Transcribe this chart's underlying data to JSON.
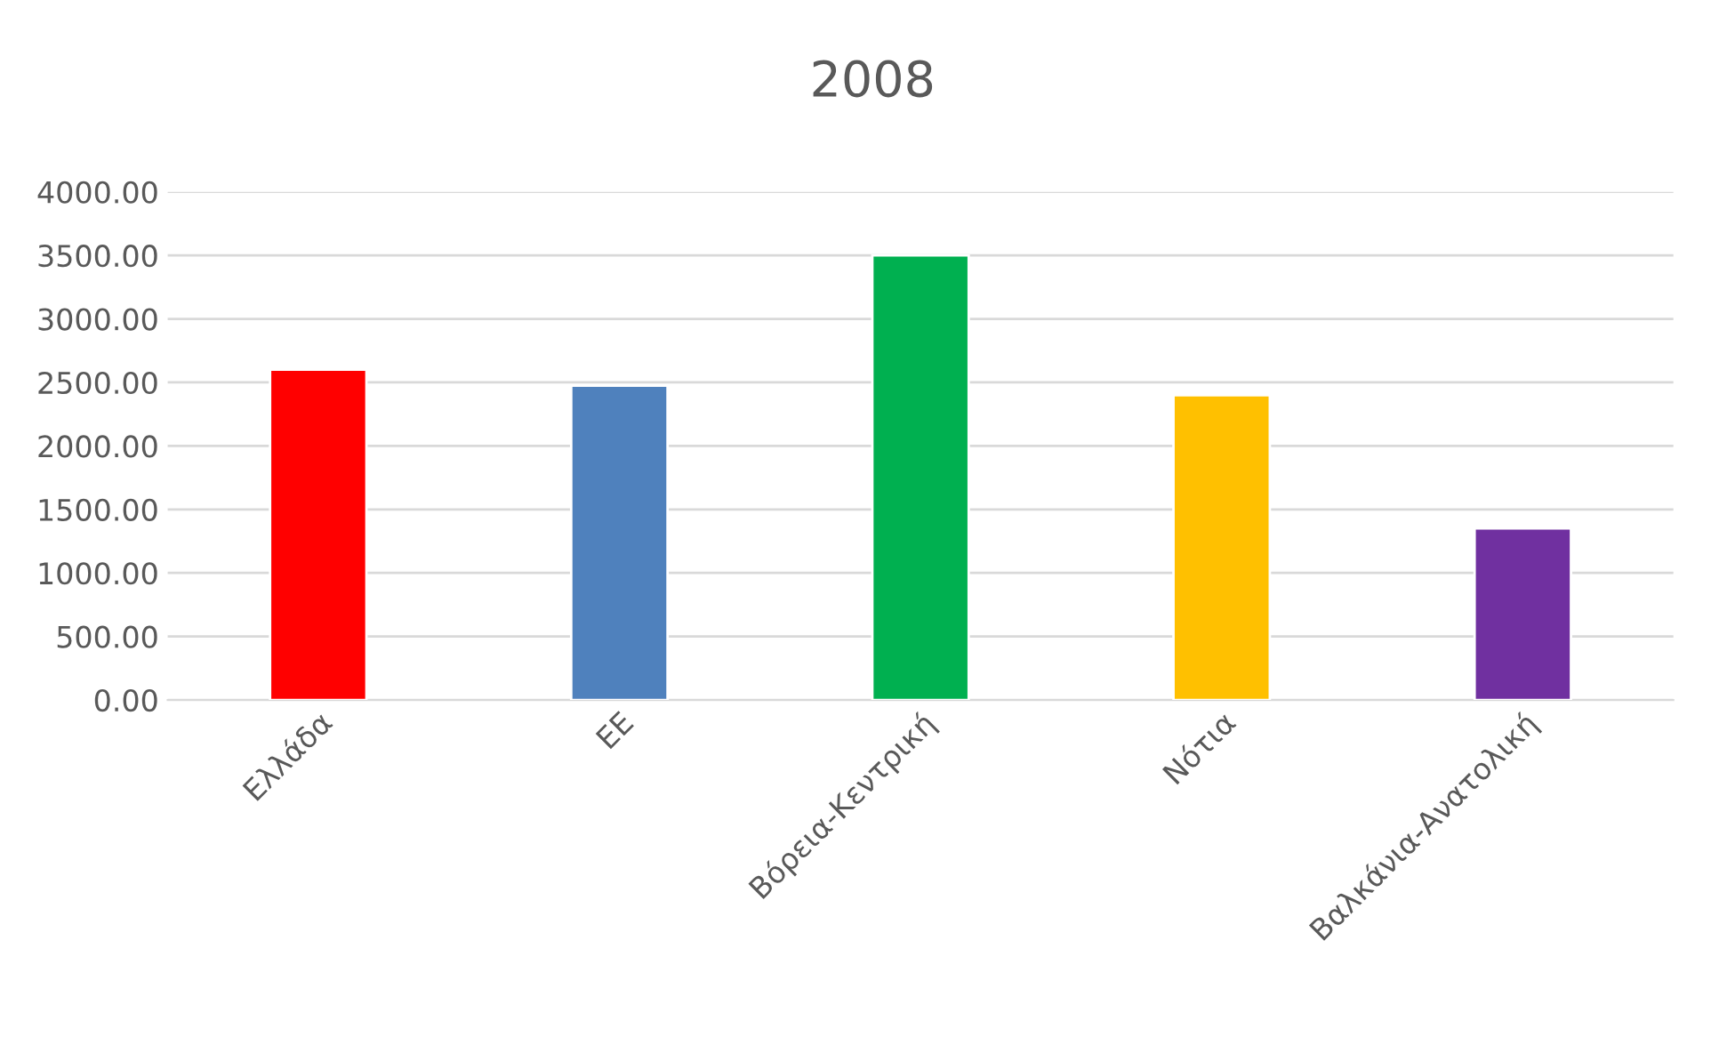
{
  "chart_data": {
    "type": "bar",
    "title": "2008",
    "categories": [
      "Ελλάδα",
      "ΕΕ",
      "Βόρεια-Κεντρική",
      "Νότια",
      "Βαλκάνια-Ανατολική"
    ],
    "values": [
      2600,
      2475,
      3500,
      2400,
      1350
    ],
    "colors": [
      "#ff0000",
      "#4f81bd",
      "#00b050",
      "#ffc000",
      "#7030a0"
    ],
    "ylim": [
      0,
      4000
    ],
    "yticks": [
      {
        "value": 0,
        "label": "0.00"
      },
      {
        "value": 500,
        "label": "500.00"
      },
      {
        "value": 1000,
        "label": "1000.00"
      },
      {
        "value": 1500,
        "label": "1500.00"
      },
      {
        "value": 2000,
        "label": "2000.00"
      },
      {
        "value": 2500,
        "label": "2500.00"
      },
      {
        "value": 3000,
        "label": "3000.00"
      },
      {
        "value": 3500,
        "label": "3500.00"
      },
      {
        "value": 4000,
        "label": "4000.00"
      }
    ],
    "grid": "y",
    "legend": false
  }
}
